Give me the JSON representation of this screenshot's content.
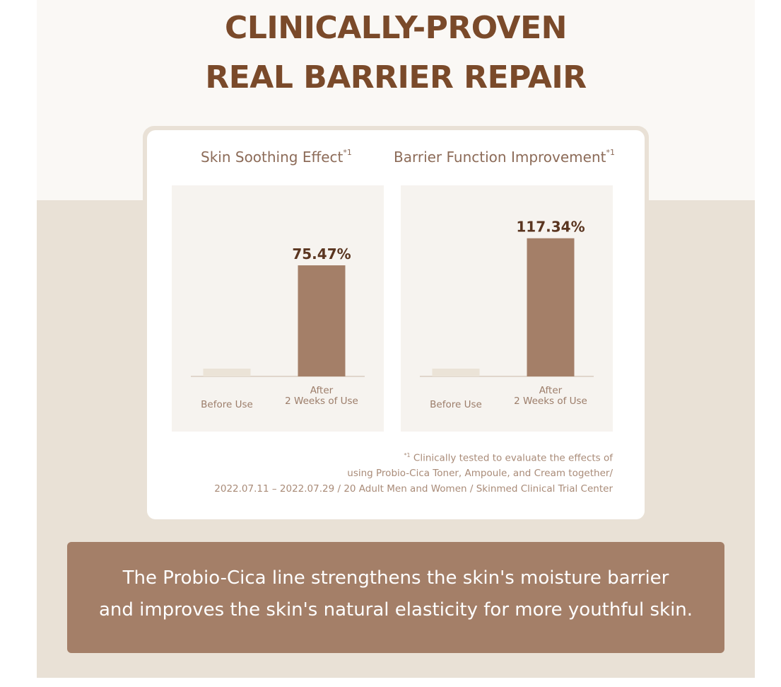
{
  "headline": {
    "line1": "CLINICALLY-PROVEN",
    "line2": "REAL BARRIER REPAIR"
  },
  "chart_data": [
    {
      "type": "bar",
      "title": "Skin Soothing Effect",
      "title_marker": "*1",
      "categories": [
        "Before Use",
        "After 2 Weeks of Use"
      ],
      "category_lines": [
        [
          "Before Use"
        ],
        [
          "After",
          "2 Weeks of Use"
        ]
      ],
      "values": [
        0,
        75.47
      ],
      "value_labels": [
        "",
        "75.47%"
      ],
      "ylim": [
        0,
        100
      ]
    },
    {
      "type": "bar",
      "title": "Barrier Function Improvement",
      "title_marker": "*1",
      "categories": [
        "Before Use",
        "After 2 Weeks of Use"
      ],
      "category_lines": [
        [
          "Before Use"
        ],
        [
          "After",
          "2 Weeks of Use"
        ]
      ],
      "values": [
        0,
        117.34
      ],
      "value_labels": [
        "",
        "117.34%"
      ],
      "ylim": [
        0,
        125
      ]
    }
  ],
  "footnote": {
    "marker": "*1",
    "line1": " Clinically tested to evaluate the effects of",
    "line2": "using Probio-Cica Toner, Ampoule, and Cream together/",
    "line3": "2022.07.11 – 2022.07.29 / 20 Adult Men and Women / Skinmed Clinical Trial Center"
  },
  "message": {
    "line1": "The Probio-Cica line strengthens the skin's moisture barrier",
    "line2": "and improves the skin's natural elasticity for more youthful skin."
  },
  "colors": {
    "headline": "#7a4a2a",
    "bar_after": "#a47f68",
    "bar_before": "#ebe3d7",
    "baseline": "#c9b9a8",
    "value_label": "#5a3520",
    "category_label": "#9c7d6a",
    "chart_title": "#8c6b58",
    "message_box": "#a47f68",
    "panel_bg": "#f6f3ef",
    "section_bg": "#e9e1d6"
  }
}
